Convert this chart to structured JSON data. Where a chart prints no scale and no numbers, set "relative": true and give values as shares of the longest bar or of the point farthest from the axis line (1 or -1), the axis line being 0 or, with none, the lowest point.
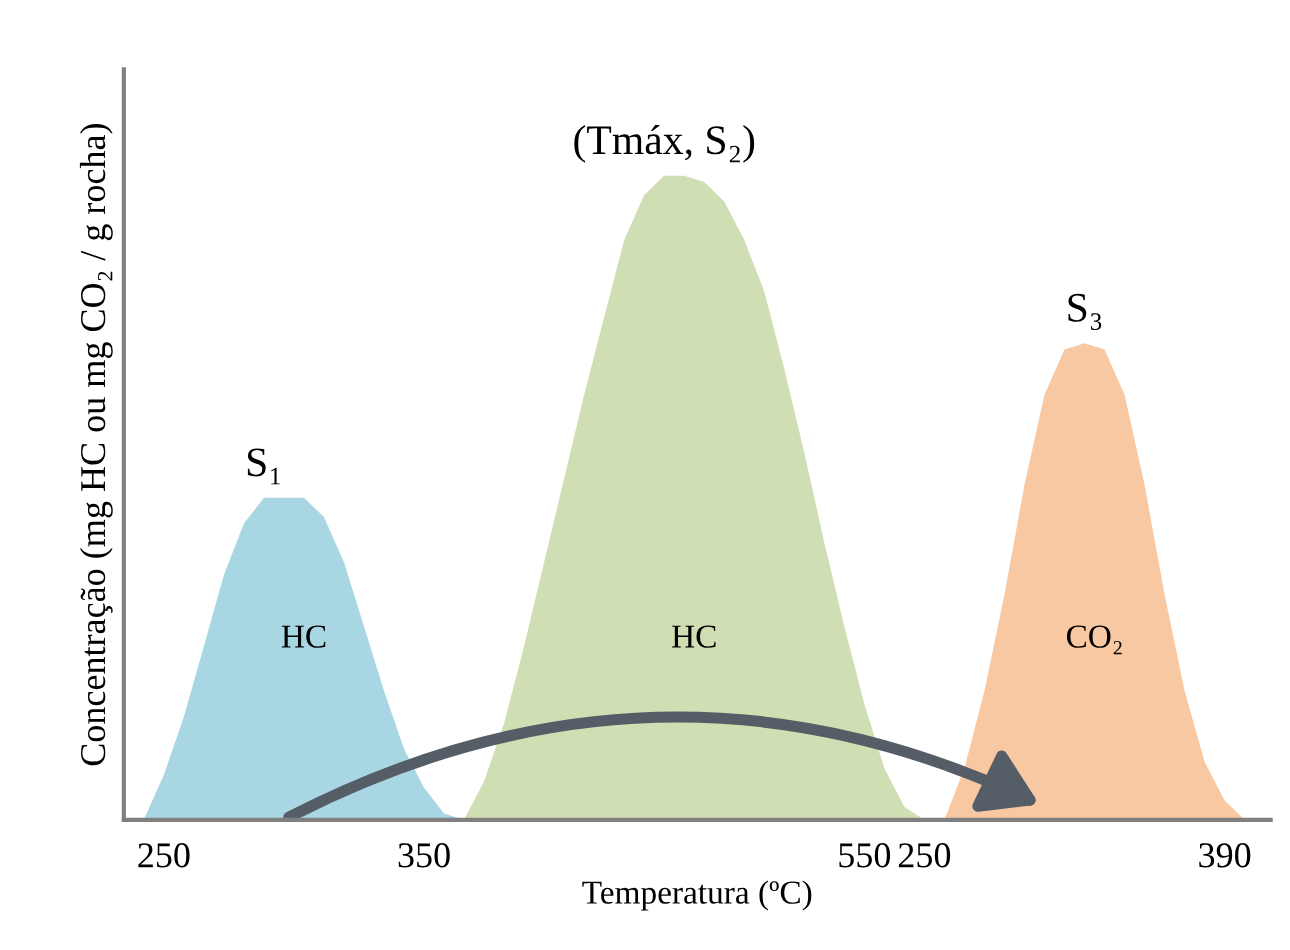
{
  "chart_data": {
    "type": "area",
    "relative": true,
    "xlabel": "Temperatura (ºC)",
    "ylabel": "Concentração (mg HC ou mg CO₂ / g rocha)",
    "categories": [
      null,
      null,
      "250",
      null,
      null,
      null,
      null,
      null,
      null,
      null,
      null,
      null,
      null,
      null,
      null,
      "350",
      null,
      null,
      null,
      null,
      null,
      null,
      null,
      null,
      null,
      null,
      null,
      null,
      null,
      null,
      null,
      null,
      null,
      null,
      null,
      null,
      null,
      "550",
      null,
      null,
      "250",
      null,
      null,
      null,
      null,
      null,
      null,
      null,
      null,
      null,
      null,
      null,
      null,
      null,
      null,
      "390",
      null,
      null
    ],
    "series": [
      {
        "name": "S₁",
        "color": "#a9d6e3",
        "values": [
          null,
          0,
          0.07,
          0.16,
          0.27,
          0.38,
          0.46,
          0.5,
          0.5,
          0.5,
          0.47,
          0.4,
          0.3,
          0.2,
          0.11,
          0.05,
          0.01,
          0,
          null,
          null,
          null,
          null,
          null,
          null,
          null,
          null,
          null,
          null,
          null,
          null,
          null,
          null,
          null,
          null,
          null,
          null,
          null,
          null,
          null,
          null,
          null,
          null,
          null,
          null,
          null,
          null,
          null,
          null,
          null,
          null,
          null,
          null,
          null,
          null,
          null,
          null,
          null,
          null
        ]
      },
      {
        "name": "(Tmáx, S₂)",
        "color": "#cfdeb3",
        "values": [
          null,
          null,
          null,
          null,
          null,
          null,
          null,
          null,
          null,
          null,
          null,
          null,
          null,
          null,
          null,
          null,
          null,
          0,
          0.06,
          0.15,
          0.27,
          0.4,
          0.53,
          0.66,
          0.78,
          0.9,
          0.97,
          1,
          1,
          0.99,
          0.96,
          0.9,
          0.82,
          0.7,
          0.57,
          0.43,
          0.3,
          0.18,
          0.08,
          0.02,
          0,
          null,
          null,
          null,
          null,
          null,
          null,
          null,
          null,
          null,
          null,
          null,
          null,
          null,
          null,
          null,
          null,
          null
        ]
      },
      {
        "name": "S₃",
        "color": "#f8c8a2",
        "values": [
          null,
          null,
          null,
          null,
          null,
          null,
          null,
          null,
          null,
          null,
          null,
          null,
          null,
          null,
          null,
          null,
          null,
          null,
          null,
          null,
          null,
          null,
          null,
          null,
          null,
          null,
          null,
          null,
          null,
          null,
          null,
          null,
          null,
          null,
          null,
          null,
          null,
          null,
          null,
          null,
          null,
          0,
          0.08,
          0.2,
          0.35,
          0.52,
          0.66,
          0.73,
          0.74,
          0.73,
          0.66,
          0.52,
          0.35,
          0.2,
          0.09,
          0.03,
          0,
          null
        ]
      }
    ],
    "annotations": [
      "HC",
      "HC",
      "CO₂"
    ]
  }
}
